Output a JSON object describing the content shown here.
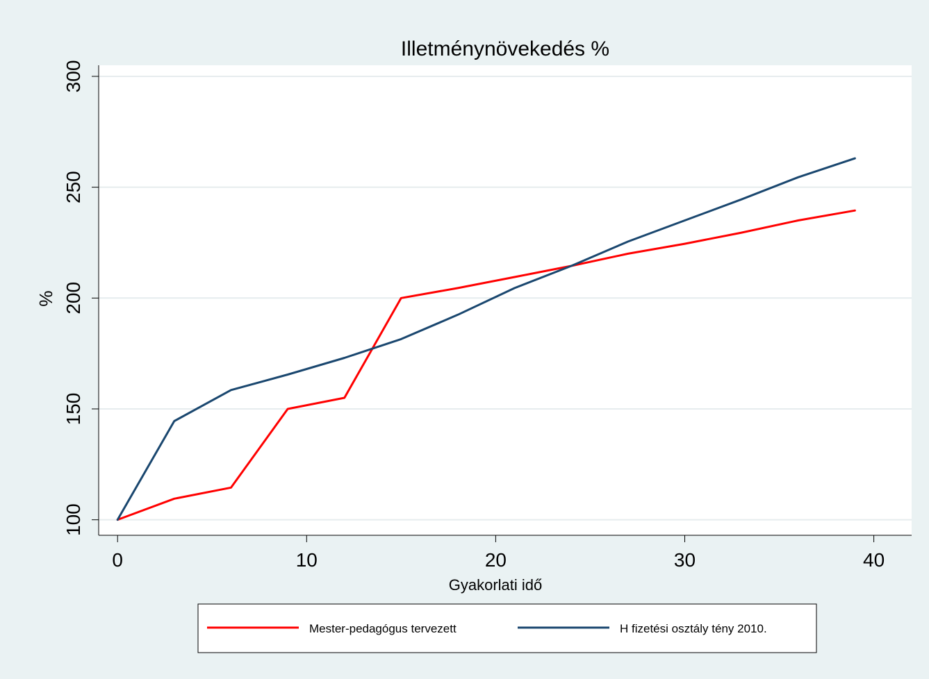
{
  "colors": {
    "background": "#eaf2f3",
    "plot_background": "#ffffff",
    "grid": "#e6ecee",
    "series_red": "#ff0000",
    "series_blue": "#1a476f"
  },
  "chart_data": {
    "type": "line",
    "title": "Illetménynövekedés %",
    "xlabel": "Gyakorlati idő",
    "ylabel": "%",
    "xlim": [
      -1,
      42
    ],
    "ylim": [
      93,
      305
    ],
    "xticks": [
      0,
      10,
      20,
      30,
      40
    ],
    "xtick_labels": [
      "0",
      "10",
      "20",
      "30",
      "40"
    ],
    "yticks": [
      100,
      150,
      200,
      250,
      300
    ],
    "ytick_labels": [
      "100",
      "150",
      "200",
      "250",
      "300"
    ],
    "grid": true,
    "legend_position": "bottom",
    "series": [
      {
        "name": "Mester-pedagógus tervezett",
        "color": "#ff0000",
        "x": [
          0,
          3,
          6,
          9,
          12,
          15,
          18,
          21,
          24,
          27,
          30,
          33,
          36,
          39
        ],
        "y": [
          100,
          109.5,
          114.5,
          150,
          155,
          200,
          204.5,
          209.5,
          214.5,
          220,
          224.5,
          229.5,
          235,
          239.5
        ]
      },
      {
        "name": "H fizetési osztály tény 2010.",
        "color": "#1a476f",
        "x": [
          0,
          3,
          6,
          9,
          12,
          15,
          18,
          21,
          24,
          27,
          30,
          33,
          36,
          39
        ],
        "y": [
          100,
          144.5,
          158.5,
          165.5,
          173,
          181.5,
          192.5,
          204.5,
          214.5,
          225.5,
          235,
          244.5,
          254.5,
          263
        ]
      }
    ]
  }
}
